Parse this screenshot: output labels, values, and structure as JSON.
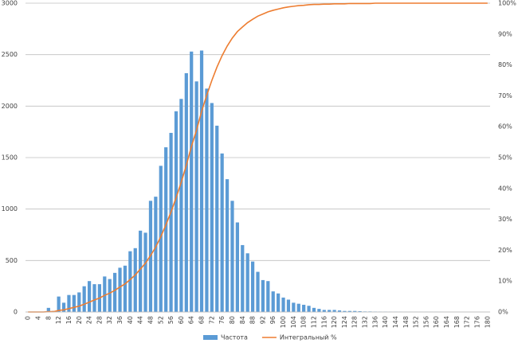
{
  "chart_data": {
    "type": "bar",
    "categories": [
      "0",
      null,
      "4",
      null,
      "8",
      null,
      "12",
      null,
      "16",
      null,
      "20",
      null,
      "24",
      null,
      "28",
      null,
      "32",
      null,
      "36",
      null,
      "40",
      null,
      "44",
      null,
      "48",
      null,
      "52",
      null,
      "56",
      null,
      "60",
      null,
      "64",
      null,
      "68",
      null,
      "72",
      null,
      "76",
      null,
      "80",
      null,
      "84",
      null,
      "88",
      null,
      "92",
      null,
      "96",
      null,
      "100",
      null,
      "104",
      null,
      "108",
      null,
      "112",
      null,
      "116",
      null,
      "120",
      null,
      "124",
      null,
      "128",
      null,
      "132",
      null,
      "136",
      null,
      "140",
      null,
      "144",
      null,
      "148",
      null,
      "152",
      null,
      "156",
      null,
      "160",
      null,
      "164",
      null,
      "168",
      null,
      "172",
      null,
      "176",
      null,
      "180"
    ],
    "series": [
      {
        "name": "Частота",
        "type": "bar",
        "color": "#5b9bd5",
        "values": [
          0,
          0,
          0,
          0,
          40,
          10,
          150,
          90,
          165,
          165,
          190,
          250,
          300,
          270,
          270,
          345,
          320,
          380,
          430,
          450,
          590,
          620,
          790,
          770,
          1080,
          1120,
          1420,
          1600,
          1740,
          1950,
          2070,
          2320,
          2530,
          2240,
          2540,
          2170,
          2030,
          1810,
          1540,
          1290,
          1080,
          870,
          650,
          570,
          490,
          390,
          310,
          300,
          200,
          180,
          140,
          120,
          90,
          80,
          70,
          60,
          40,
          30,
          20,
          20,
          20,
          15,
          10,
          10,
          10,
          8,
          5,
          5,
          4,
          3,
          3,
          2,
          2,
          2,
          1,
          1,
          1,
          1,
          1,
          1,
          1,
          1,
          0,
          0,
          0,
          0,
          0,
          0,
          0,
          0,
          0
        ]
      },
      {
        "name": "Интегральный %",
        "type": "line",
        "axis": "y2",
        "color": "#ed7d31",
        "values": [
          0,
          0,
          0,
          0,
          0.1,
          0.1,
          0.5,
          0.7,
          1.1,
          1.5,
          1.9,
          2.5,
          3.2,
          3.9,
          4.5,
          5.4,
          6.1,
          7.0,
          8.1,
          9.1,
          10.5,
          12.0,
          13.9,
          15.8,
          18.3,
          21.0,
          24.4,
          28.2,
          32.4,
          37.0,
          42.0,
          47.5,
          53.6,
          58.9,
          65.0,
          70.2,
          75.0,
          79.3,
          83.0,
          86.1,
          88.7,
          90.8,
          92.3,
          93.7,
          94.8,
          95.8,
          96.5,
          97.2,
          97.7,
          98.1,
          98.5,
          98.8,
          99.0,
          99.2,
          99.3,
          99.5,
          99.6,
          99.6,
          99.7,
          99.7,
          99.8,
          99.8,
          99.8,
          99.9,
          99.9,
          99.9,
          99.9,
          99.9,
          100,
          100,
          100,
          100,
          100,
          100,
          100,
          100,
          100,
          100,
          100,
          100,
          100,
          100,
          100,
          100,
          100,
          100,
          100,
          100,
          100,
          100,
          100
        ]
      }
    ],
    "ylim": [
      0,
      3000
    ],
    "yticks": [
      0,
      500,
      1000,
      1500,
      2000,
      2500,
      3000
    ],
    "y2lim": [
      0,
      100
    ],
    "y2ticks": [
      {
        "value": 0,
        "label": "0%"
      },
      {
        "value": 10,
        "label": "10%"
      },
      {
        "value": 20,
        "label": "20%"
      },
      {
        "value": 30,
        "label": "30%"
      },
      {
        "value": 40,
        "label": "40%"
      },
      {
        "value": 50,
        "label": "50%"
      },
      {
        "value": 60,
        "label": "60%"
      },
      {
        "value": 70,
        "label": "70%"
      },
      {
        "value": 80,
        "label": "80%"
      },
      {
        "value": 90,
        "label": "90%"
      },
      {
        "value": 100,
        "label": "100%"
      }
    ],
    "grid": true,
    "legend": "bottom"
  }
}
